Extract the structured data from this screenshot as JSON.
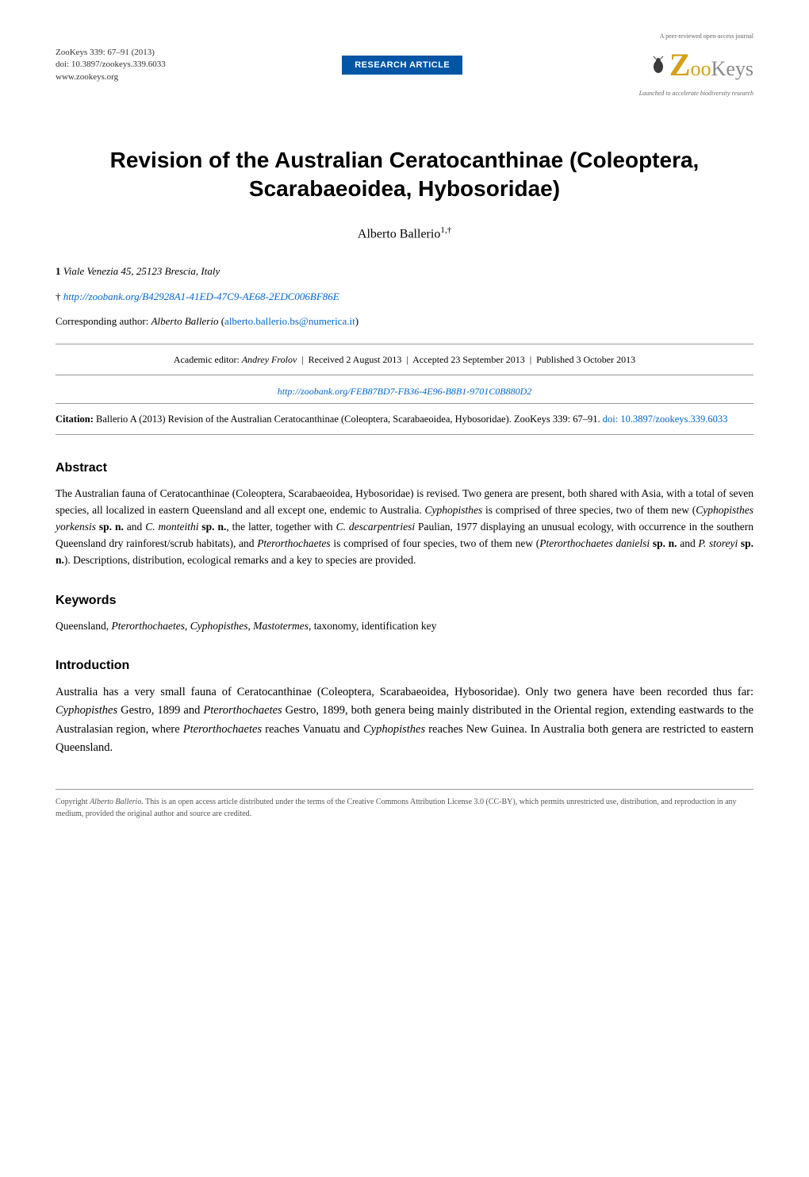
{
  "header": {
    "journal_line": "ZooKeys 339: 67–91 (2013)",
    "doi_line": "doi: 10.3897/zookeys.339.6033",
    "website": "www.zookeys.org",
    "badge_text": "RESEARCH ARTICLE",
    "logo_tagline_top": "A peer-reviewed open-access journal",
    "logo_z": "Z",
    "logo_zoo": "oo",
    "logo_keys": "Keys",
    "logo_tagline_bottom": "Launched to accelerate biodiversity research"
  },
  "title": "Revision of the Australian Ceratocanthinae (Coleoptera, Scarabaeoidea, Hybosoridae)",
  "author": {
    "name": "Alberto Ballerio",
    "superscript": "1,†"
  },
  "affiliation": {
    "number": "1",
    "text": "Viale Venezia 45, 25123 Brescia, Italy"
  },
  "orcid": {
    "symbol": "†",
    "url": "http://zoobank.org/B42928A1-41ED-47C9-AE68-2EDC006BF86E"
  },
  "corresponding": {
    "label": "Corresponding author:",
    "name": "Alberto Ballerio",
    "email": "alberto.ballerio.bs@numerica.it"
  },
  "editor_line": {
    "prefix": "Academic editor:",
    "name": "Andrey Frolov",
    "received": "Received 2 August 2013",
    "accepted": "Accepted 23 September 2013",
    "published": "Published 3 October 2013"
  },
  "zoobank_url": "http://zoobank.org/FEB87BD7-FB36-4E96-B8B1-9701C0B880D2",
  "citation": {
    "label": "Citation:",
    "text": "Ballerio A (2013) Revision of the Australian Ceratocanthinae (Coleoptera, Scarabaeoidea, Hybosoridae). ZooKeys 339: 67–91.",
    "doi_text": "doi: 10.3897/zookeys.339.6033"
  },
  "abstract": {
    "heading": "Abstract",
    "text_parts": [
      {
        "type": "plain",
        "text": "The Australian fauna of Ceratocanthinae (Coleoptera, Scarabaeoidea, Hybosoridae) is revised. Two genera are present, both shared with Asia, with a total of seven species, all localized in eastern Queensland and all except one, endemic to Australia. "
      },
      {
        "type": "italic",
        "text": "Cyphopisthes"
      },
      {
        "type": "plain",
        "text": " is comprised of three species, two of them new ("
      },
      {
        "type": "italic",
        "text": "Cyphopisthes yorkensis"
      },
      {
        "type": "plain",
        "text": " "
      },
      {
        "type": "bold",
        "text": "sp. n."
      },
      {
        "type": "plain",
        "text": " and "
      },
      {
        "type": "italic",
        "text": "C. monteithi"
      },
      {
        "type": "plain",
        "text": " "
      },
      {
        "type": "bold",
        "text": "sp. n."
      },
      {
        "type": "plain",
        "text": ", the latter, together with "
      },
      {
        "type": "italic",
        "text": "C. descarpentriesi"
      },
      {
        "type": "plain",
        "text": " Paulian, 1977 displaying an unusual ecology, with occurrence in the southern Queensland dry rainforest/scrub habitats), and "
      },
      {
        "type": "italic",
        "text": "Pterorthochaetes"
      },
      {
        "type": "plain",
        "text": " is comprised of four species, two of them new ("
      },
      {
        "type": "italic",
        "text": "Pterorthochaetes danielsi"
      },
      {
        "type": "plain",
        "text": " "
      },
      {
        "type": "bold",
        "text": "sp. n."
      },
      {
        "type": "plain",
        "text": " and "
      },
      {
        "type": "italic",
        "text": "P. storeyi"
      },
      {
        "type": "plain",
        "text": " "
      },
      {
        "type": "bold",
        "text": "sp. n."
      },
      {
        "type": "plain",
        "text": "). Descriptions, distribution, ecological remarks and a key to species are provided."
      }
    ]
  },
  "keywords": {
    "heading": "Keywords",
    "text_parts": [
      {
        "type": "plain",
        "text": "Queensland, "
      },
      {
        "type": "italic",
        "text": "Pterorthochaetes"
      },
      {
        "type": "plain",
        "text": ", "
      },
      {
        "type": "italic",
        "text": "Cyphopisthes"
      },
      {
        "type": "plain",
        "text": ", "
      },
      {
        "type": "italic",
        "text": "Mastotermes"
      },
      {
        "type": "plain",
        "text": ", taxonomy, identification key"
      }
    ]
  },
  "introduction": {
    "heading": "Introduction",
    "text_parts": [
      {
        "type": "plain",
        "text": "Australia has a very small fauna of Ceratocanthinae (Coleoptera, Scarabaeoidea, Hybosoridae). Only two genera have been recorded thus far: "
      },
      {
        "type": "italic",
        "text": "Cyphopisthes"
      },
      {
        "type": "plain",
        "text": " Gestro, 1899 and "
      },
      {
        "type": "italic",
        "text": "Pterorthochaetes"
      },
      {
        "type": "plain",
        "text": " Gestro, 1899, both genera being mainly distributed in the Oriental region, extending eastwards to the Australasian region, where "
      },
      {
        "type": "italic",
        "text": "Pterorthochaetes"
      },
      {
        "type": "plain",
        "text": " reaches Vanuatu and "
      },
      {
        "type": "italic",
        "text": "Cyphopisthes"
      },
      {
        "type": "plain",
        "text": " reaches New Guinea. In Australia both genera are restricted to eastern Queensland."
      }
    ]
  },
  "copyright": {
    "prefix": "Copyright ",
    "name": "Alberto Ballerio.",
    "text": " This is an open access article distributed under the terms of the Creative Commons Attribution License 3.0 (CC-BY), which permits unrestricted use, distribution, and reproduction in any medium, provided the original author and source are credited."
  },
  "colors": {
    "badge_bg": "#0055a5",
    "badge_text": "#ffffff",
    "logo_gold": "#d4a017",
    "logo_grey": "#888888",
    "link": "#0066cc",
    "text": "#000000",
    "rule": "#999999"
  }
}
